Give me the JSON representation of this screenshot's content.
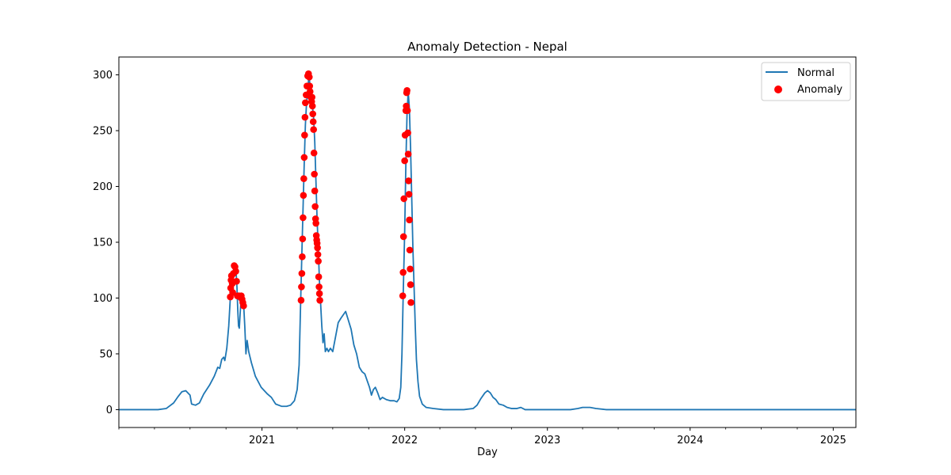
{
  "chart_data": {
    "type": "line",
    "title": "Anomaly Detection - Nepal",
    "xlabel": "Day",
    "ylabel": "",
    "x_range": [
      "2020-01-01",
      "2025-02-28"
    ],
    "ylim": [
      -16,
      316
    ],
    "y_ticks": [
      0,
      50,
      100,
      150,
      200,
      250,
      300
    ],
    "x_ticks": [
      {
        "date": "2021-01-01",
        "label": "2021"
      },
      {
        "date": "2022-01-01",
        "label": "2022"
      },
      {
        "date": "2023-01-01",
        "label": "2023"
      },
      {
        "date": "2024-01-01",
        "label": "2024"
      },
      {
        "date": "2025-01-01",
        "label": "2025"
      }
    ],
    "grid": false,
    "legend": {
      "position": "top-right",
      "entries": [
        "Normal",
        "Anomaly"
      ]
    },
    "colors": {
      "normal": "#1f77b4",
      "anomaly": "#ff0000"
    },
    "series": [
      {
        "name": "Normal",
        "style": "line",
        "points": [
          [
            "2020-01-01",
            0
          ],
          [
            "2020-04-10",
            0
          ],
          [
            "2020-05-01",
            1
          ],
          [
            "2020-05-20",
            6
          ],
          [
            "2020-06-01",
            12
          ],
          [
            "2020-06-10",
            16
          ],
          [
            "2020-06-20",
            17
          ],
          [
            "2020-07-01",
            13
          ],
          [
            "2020-07-05",
            5
          ],
          [
            "2020-07-15",
            4
          ],
          [
            "2020-07-25",
            6
          ],
          [
            "2020-08-05",
            14
          ],
          [
            "2020-08-20",
            22
          ],
          [
            "2020-09-01",
            30
          ],
          [
            "2020-09-10",
            38
          ],
          [
            "2020-09-15",
            37
          ],
          [
            "2020-09-20",
            45
          ],
          [
            "2020-09-25",
            47
          ],
          [
            "2020-09-28",
            44
          ],
          [
            "2020-10-03",
            55
          ],
          [
            "2020-10-08",
            75
          ],
          [
            "2020-10-12",
            100
          ],
          [
            "2020-10-15",
            110
          ],
          [
            "2020-10-18",
            115
          ],
          [
            "2020-10-21",
            120
          ],
          [
            "2020-10-24",
            125
          ],
          [
            "2020-10-27",
            122
          ],
          [
            "2020-10-29",
            110
          ],
          [
            "2020-10-31",
            90
          ],
          [
            "2020-11-02",
            75
          ],
          [
            "2020-11-04",
            73
          ],
          [
            "2020-11-06",
            85
          ],
          [
            "2020-11-09",
            102
          ],
          [
            "2020-11-12",
            100
          ],
          [
            "2020-11-15",
            95
          ],
          [
            "2020-11-18",
            75
          ],
          [
            "2020-11-21",
            50
          ],
          [
            "2020-11-24",
            62
          ],
          [
            "2020-11-28",
            52
          ],
          [
            "2020-12-05",
            42
          ],
          [
            "2020-12-15",
            30
          ],
          [
            "2020-12-30",
            20
          ],
          [
            "2021-01-15",
            14
          ],
          [
            "2021-01-25",
            11
          ],
          [
            "2021-02-05",
            5
          ],
          [
            "2021-02-20",
            3
          ],
          [
            "2021-03-05",
            3
          ],
          [
            "2021-03-15",
            4
          ],
          [
            "2021-03-25",
            8
          ],
          [
            "2021-04-01",
            18
          ],
          [
            "2021-04-06",
            40
          ],
          [
            "2021-04-10",
            98
          ],
          [
            "2021-04-13",
            140
          ],
          [
            "2021-04-16",
            180
          ],
          [
            "2021-04-19",
            220
          ],
          [
            "2021-04-22",
            255
          ],
          [
            "2021-04-25",
            275
          ],
          [
            "2021-04-28",
            285
          ],
          [
            "2021-05-01",
            300
          ],
          [
            "2021-05-04",
            290
          ],
          [
            "2021-05-07",
            280
          ],
          [
            "2021-05-10",
            272
          ],
          [
            "2021-05-13",
            262
          ],
          [
            "2021-05-16",
            240
          ],
          [
            "2021-05-19",
            205
          ],
          [
            "2021-05-22",
            170
          ],
          [
            "2021-05-25",
            145
          ],
          [
            "2021-05-28",
            115
          ],
          [
            "2021-05-31",
            95
          ],
          [
            "2021-06-03",
            75
          ],
          [
            "2021-06-06",
            60
          ],
          [
            "2021-06-09",
            68
          ],
          [
            "2021-06-12",
            52
          ],
          [
            "2021-06-16",
            55
          ],
          [
            "2021-06-20",
            52
          ],
          [
            "2021-06-25",
            55
          ],
          [
            "2021-07-01",
            52
          ],
          [
            "2021-07-08",
            65
          ],
          [
            "2021-07-15",
            78
          ],
          [
            "2021-07-22",
            82
          ],
          [
            "2021-07-28",
            85
          ],
          [
            "2021-08-03",
            88
          ],
          [
            "2021-08-10",
            80
          ],
          [
            "2021-08-17",
            72
          ],
          [
            "2021-08-24",
            58
          ],
          [
            "2021-08-31",
            50
          ],
          [
            "2021-09-07",
            38
          ],
          [
            "2021-09-14",
            34
          ],
          [
            "2021-09-21",
            32
          ],
          [
            "2021-09-28",
            25
          ],
          [
            "2021-10-03",
            20
          ],
          [
            "2021-10-08",
            13
          ],
          [
            "2021-10-13",
            18
          ],
          [
            "2021-10-18",
            20
          ],
          [
            "2021-10-24",
            15
          ],
          [
            "2021-10-30",
            9
          ],
          [
            "2021-11-05",
            11
          ],
          [
            "2021-11-15",
            9
          ],
          [
            "2021-11-25",
            8
          ],
          [
            "2021-12-05",
            8
          ],
          [
            "2021-12-12",
            7
          ],
          [
            "2021-12-18",
            10
          ],
          [
            "2021-12-22",
            20
          ],
          [
            "2021-12-25",
            50
          ],
          [
            "2021-12-28",
            100
          ],
          [
            "2022-01-01",
            160
          ],
          [
            "2022-01-04",
            220
          ],
          [
            "2022-01-07",
            265
          ],
          [
            "2022-01-10",
            285
          ],
          [
            "2022-01-13",
            270
          ],
          [
            "2022-01-16",
            235
          ],
          [
            "2022-01-19",
            190
          ],
          [
            "2022-01-22",
            145
          ],
          [
            "2022-01-25",
            110
          ],
          [
            "2022-01-28",
            75
          ],
          [
            "2022-01-31",
            45
          ],
          [
            "2022-02-04",
            25
          ],
          [
            "2022-02-08",
            12
          ],
          [
            "2022-02-15",
            5
          ],
          [
            "2022-02-25",
            2
          ],
          [
            "2022-03-15",
            1
          ],
          [
            "2022-04-10",
            0
          ],
          [
            "2022-06-01",
            0
          ],
          [
            "2022-06-25",
            1
          ],
          [
            "2022-07-05",
            4
          ],
          [
            "2022-07-15",
            10
          ],
          [
            "2022-07-25",
            15
          ],
          [
            "2022-08-01",
            17
          ],
          [
            "2022-08-08",
            15
          ],
          [
            "2022-08-15",
            11
          ],
          [
            "2022-08-22",
            9
          ],
          [
            "2022-08-30",
            5
          ],
          [
            "2022-09-10",
            4
          ],
          [
            "2022-09-20",
            2
          ],
          [
            "2022-10-01",
            1
          ],
          [
            "2022-10-15",
            1
          ],
          [
            "2022-10-25",
            2
          ],
          [
            "2022-11-05",
            0
          ],
          [
            "2023-01-01",
            0
          ],
          [
            "2023-03-01",
            0
          ],
          [
            "2023-03-20",
            1
          ],
          [
            "2023-04-01",
            2
          ],
          [
            "2023-04-20",
            2
          ],
          [
            "2023-05-05",
            1
          ],
          [
            "2023-06-01",
            0
          ],
          [
            "2025-02-28",
            0
          ]
        ]
      },
      {
        "name": "Anomaly",
        "style": "scatter",
        "points": [
          [
            "2020-10-12",
            101
          ],
          [
            "2020-10-13",
            109
          ],
          [
            "2020-10-14",
            116
          ],
          [
            "2020-10-15",
            120
          ],
          [
            "2020-10-17",
            113
          ],
          [
            "2020-10-18",
            105
          ],
          [
            "2020-10-20",
            122
          ],
          [
            "2020-10-22",
            129
          ],
          [
            "2020-10-24",
            128
          ],
          [
            "2020-10-26",
            124
          ],
          [
            "2020-10-28",
            115
          ],
          [
            "2020-10-30",
            102
          ],
          [
            "2020-11-03",
            102
          ],
          [
            "2020-11-06",
            101
          ],
          [
            "2020-11-09",
            102
          ],
          [
            "2020-11-11",
            99
          ],
          [
            "2020-11-13",
            96
          ],
          [
            "2020-11-15",
            93
          ],
          [
            "2021-04-11",
            98
          ],
          [
            "2021-04-12",
            110
          ],
          [
            "2021-04-13",
            122
          ],
          [
            "2021-04-14",
            137
          ],
          [
            "2021-04-15",
            153
          ],
          [
            "2021-04-16",
            172
          ],
          [
            "2021-04-17",
            192
          ],
          [
            "2021-04-18",
            207
          ],
          [
            "2021-04-19",
            226
          ],
          [
            "2021-04-20",
            246
          ],
          [
            "2021-04-21",
            262
          ],
          [
            "2021-04-22",
            275
          ],
          [
            "2021-04-24",
            282
          ],
          [
            "2021-04-26",
            290
          ],
          [
            "2021-04-28",
            299
          ],
          [
            "2021-04-30",
            301
          ],
          [
            "2021-05-02",
            298
          ],
          [
            "2021-05-03",
            290
          ],
          [
            "2021-05-04",
            285
          ],
          [
            "2021-05-06",
            280
          ],
          [
            "2021-05-08",
            276
          ],
          [
            "2021-05-09",
            280
          ],
          [
            "2021-05-10",
            272
          ],
          [
            "2021-05-11",
            265
          ],
          [
            "2021-05-12",
            258
          ],
          [
            "2021-05-13",
            251
          ],
          [
            "2021-05-14",
            230
          ],
          [
            "2021-05-15",
            211
          ],
          [
            "2021-05-16",
            196
          ],
          [
            "2021-05-17",
            182
          ],
          [
            "2021-05-18",
            171
          ],
          [
            "2021-05-19",
            167
          ],
          [
            "2021-05-20",
            156
          ],
          [
            "2021-05-21",
            152
          ],
          [
            "2021-05-22",
            149
          ],
          [
            "2021-05-23",
            145
          ],
          [
            "2021-05-24",
            139
          ],
          [
            "2021-05-25",
            133
          ],
          [
            "2021-05-26",
            119
          ],
          [
            "2021-05-27",
            110
          ],
          [
            "2021-05-28",
            104
          ],
          [
            "2021-05-29",
            98
          ],
          [
            "2021-12-27",
            102
          ],
          [
            "2021-12-28",
            123
          ],
          [
            "2021-12-29",
            155
          ],
          [
            "2021-12-30",
            189
          ],
          [
            "2022-01-01",
            223
          ],
          [
            "2022-01-02",
            246
          ],
          [
            "2022-01-04",
            268
          ],
          [
            "2022-01-05",
            272
          ],
          [
            "2022-01-06",
            284
          ],
          [
            "2022-01-07",
            286
          ],
          [
            "2022-01-08",
            268
          ],
          [
            "2022-01-09",
            248
          ],
          [
            "2022-01-10",
            229
          ],
          [
            "2022-01-11",
            205
          ],
          [
            "2022-01-12",
            193
          ],
          [
            "2022-01-13",
            170
          ],
          [
            "2022-01-14",
            143
          ],
          [
            "2022-01-15",
            126
          ],
          [
            "2022-01-16",
            112
          ],
          [
            "2022-01-17",
            96
          ]
        ]
      }
    ]
  }
}
